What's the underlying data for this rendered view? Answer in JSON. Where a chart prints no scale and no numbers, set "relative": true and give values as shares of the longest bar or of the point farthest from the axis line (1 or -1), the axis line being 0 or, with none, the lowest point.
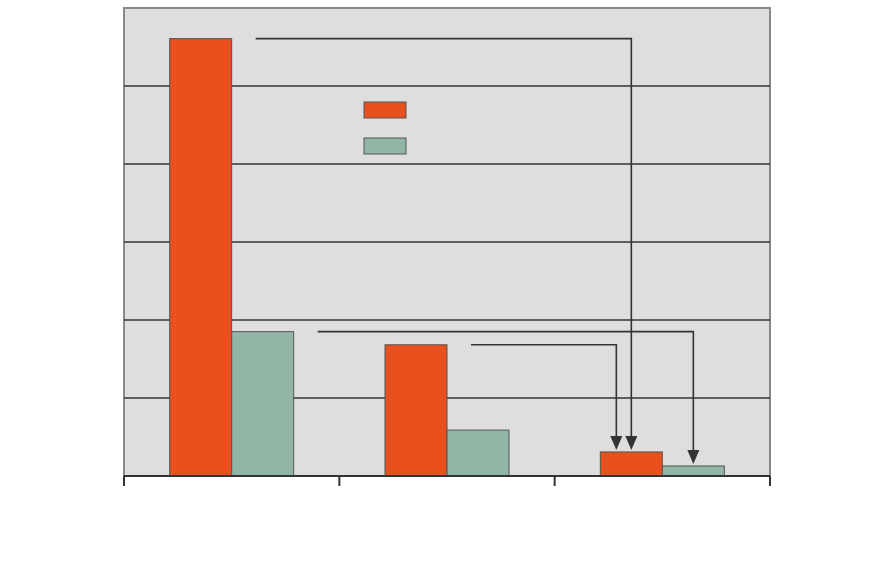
{
  "chart_data": {
    "type": "bar",
    "relative": true,
    "categories": [
      null,
      null,
      null
    ],
    "grid": "y",
    "series": [
      {
        "color": "#e8501e",
        "values": [
          1,
          0.3,
          0.055
        ]
      },
      {
        "color": "#93b5a6",
        "values": [
          0.33,
          0.105,
          0.023
        ]
      }
    ]
  }
}
